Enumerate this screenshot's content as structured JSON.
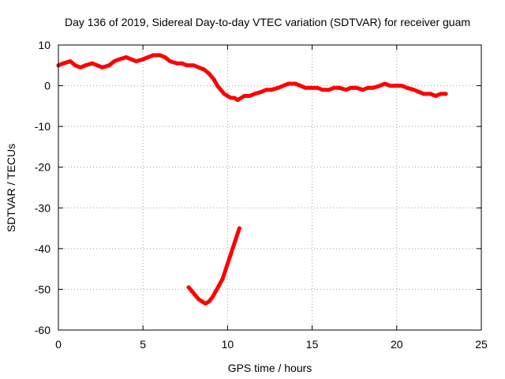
{
  "chart_data": {
    "type": "scatter",
    "title": "Day 136 of 2019, Sidereal Day-to-day VTEC variation (SDTVAR) for receiver guam",
    "xlabel": "GPS time / hours",
    "ylabel": "SDTVAR / TECUs",
    "xlim": [
      0,
      25
    ],
    "ylim": [
      -60,
      10
    ],
    "xticks": [
      0,
      5,
      10,
      15,
      20,
      25
    ],
    "yticks": [
      -60,
      -50,
      -40,
      -30,
      -20,
      -10,
      0,
      10
    ],
    "grid": true,
    "series_color": "#ff0000",
    "series": [
      {
        "name": "main-trace",
        "x": [
          0.0,
          0.3,
          0.7,
          1.0,
          1.3,
          1.6,
          2.0,
          2.3,
          2.6,
          3.0,
          3.3,
          3.6,
          4.0,
          4.3,
          4.6,
          5.0,
          5.3,
          5.6,
          6.0,
          6.3,
          6.6,
          7.0,
          7.3,
          7.6,
          8.0,
          8.3,
          8.6,
          8.9,
          9.2,
          9.4,
          9.6,
          9.8,
          10.0,
          10.2,
          10.4,
          10.6,
          10.8,
          11.0,
          11.3,
          11.6,
          12.0,
          12.3,
          12.6,
          13.0,
          13.3,
          13.6,
          14.0,
          14.3,
          14.6,
          15.0,
          15.3,
          15.6,
          16.0,
          16.3,
          16.6,
          17.0,
          17.3,
          17.6,
          18.0,
          18.3,
          18.6,
          19.0,
          19.3,
          19.6,
          20.0,
          20.3,
          20.6,
          21.0,
          21.3,
          21.6,
          22.0,
          22.3,
          22.6,
          22.9
        ],
        "y": [
          5.0,
          5.5,
          6.0,
          5.0,
          4.5,
          5.0,
          5.5,
          5.0,
          4.5,
          5.0,
          6.0,
          6.5,
          7.0,
          6.5,
          6.0,
          6.5,
          7.0,
          7.5,
          7.5,
          7.0,
          6.0,
          5.5,
          5.5,
          5.0,
          5.0,
          4.5,
          4.0,
          3.0,
          1.5,
          0.0,
          -1.0,
          -2.0,
          -2.5,
          -3.0,
          -3.0,
          -3.5,
          -3.0,
          -2.5,
          -2.5,
          -2.0,
          -1.5,
          -1.0,
          -1.0,
          -0.5,
          0.0,
          0.5,
          0.5,
          0.0,
          -0.5,
          -0.5,
          -0.5,
          -1.0,
          -1.0,
          -0.5,
          -0.5,
          -1.0,
          -0.5,
          -0.5,
          -1.0,
          -0.5,
          -0.5,
          0.0,
          0.5,
          0.0,
          0.0,
          0.0,
          -0.5,
          -1.0,
          -1.5,
          -2.0,
          -2.0,
          -2.5,
          -2.0,
          -2.0
        ]
      },
      {
        "name": "dip-trace",
        "x": [
          7.7,
          7.9,
          8.1,
          8.3,
          8.5,
          8.7,
          8.9,
          9.1,
          9.3,
          9.5,
          9.7,
          9.9,
          10.1,
          10.3,
          10.5,
          10.7
        ],
        "y": [
          -49.5,
          -50.5,
          -51.5,
          -52.5,
          -53.0,
          -53.5,
          -53.0,
          -52.0,
          -50.5,
          -49.0,
          -47.5,
          -45.0,
          -42.5,
          -40.0,
          -37.5,
          -35.0
        ]
      }
    ]
  }
}
